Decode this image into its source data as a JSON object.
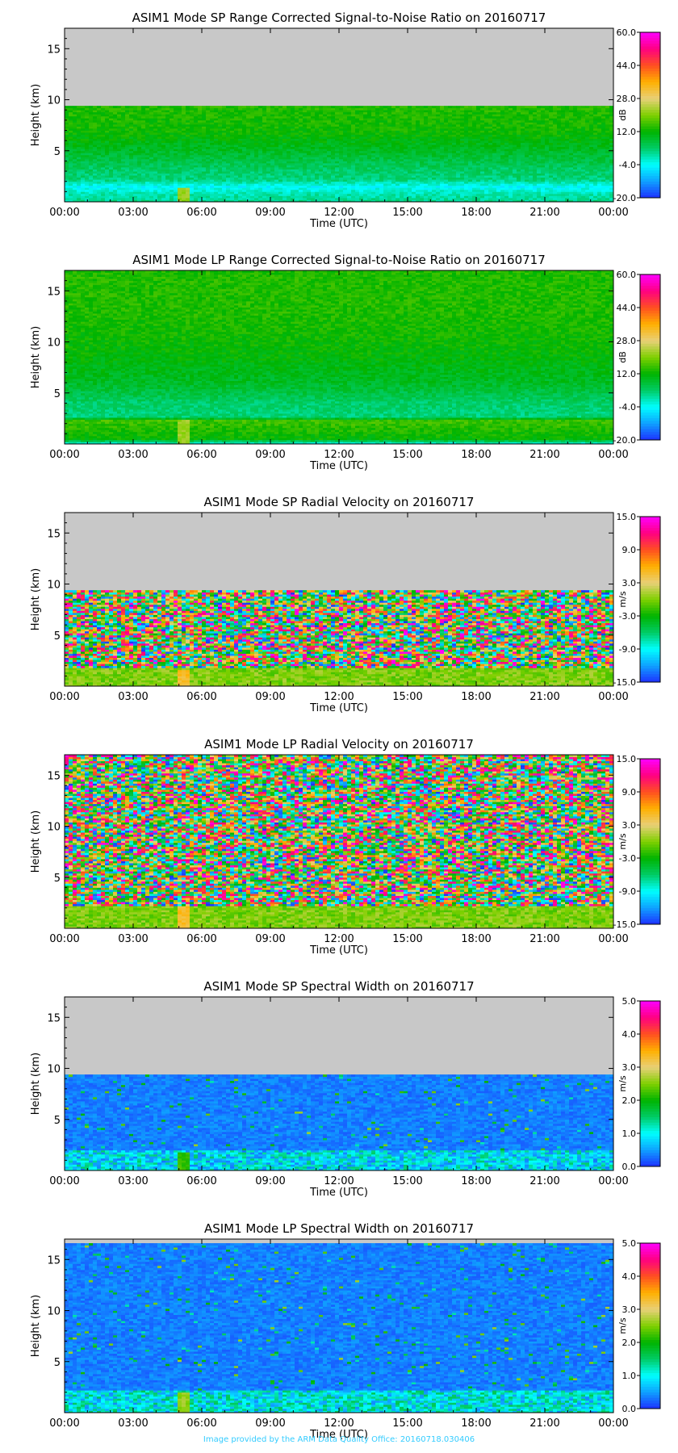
{
  "footer_text": "Image provided by the ARM Data Quality Office: 20160718.030406",
  "colors": {
    "no_data": "#c8c8c8",
    "background": "#ffffff",
    "colorbar": [
      "#1e30ff",
      "#0fa0ff",
      "#00ffff",
      "#00cc66",
      "#00b400",
      "#7fd000",
      "#e8d078",
      "#ffb000",
      "#ff5020",
      "#ff0080",
      "#ff00ff"
    ]
  },
  "chart_data": [
    {
      "type": "heatmap",
      "title": "ASIM1 Mode SP Range Corrected Signal-to-Noise Ratio on 20160717",
      "xlabel": "Time (UTC)",
      "ylabel": "Height (km)",
      "x_ticks": [
        "00:00",
        "03:00",
        "06:00",
        "09:00",
        "12:00",
        "15:00",
        "18:00",
        "21:00",
        "00:00"
      ],
      "xlim_hours": [
        0,
        24
      ],
      "ylim": [
        0,
        17
      ],
      "y_ticks": [
        5,
        10,
        15
      ],
      "data_top_km": 9.3,
      "no_data_above_top": true,
      "colorbar": {
        "unit": "dB",
        "range": [
          -20,
          60
        ],
        "tick_labels": [
          "60.0",
          "44.0",
          "28.0",
          "12.0",
          "-4.0",
          "-20.0"
        ]
      },
      "profile": [
        [
          0,
          2
        ],
        [
          0.8,
          0
        ],
        [
          1.5,
          -4
        ],
        [
          2.2,
          3
        ],
        [
          3.0,
          4
        ],
        [
          5.0,
          9
        ],
        [
          7.0,
          13
        ],
        [
          9.3,
          14
        ]
      ],
      "events": [
        {
          "time_h": 5.2,
          "height_top_km": 1.5,
          "value": 22
        }
      ]
    },
    {
      "type": "heatmap",
      "title": "ASIM1 Mode LP Range Corrected Signal-to-Noise Ratio on 20160717",
      "xlabel": "Time (UTC)",
      "ylabel": "Height (km)",
      "x_ticks": [
        "00:00",
        "03:00",
        "06:00",
        "09:00",
        "12:00",
        "15:00",
        "18:00",
        "21:00",
        "00:00"
      ],
      "xlim_hours": [
        0,
        24
      ],
      "ylim": [
        0,
        17
      ],
      "y_ticks": [
        5,
        10,
        15
      ],
      "data_top_km": 17,
      "no_data_above_top": false,
      "colorbar": {
        "unit": "dB",
        "range": [
          -20,
          60
        ],
        "tick_labels": [
          "60.0",
          "44.0",
          "28.0",
          "12.0",
          "-4.0",
          "-20.0"
        ]
      },
      "profile": [
        [
          0,
          -4
        ],
        [
          0.5,
          12
        ],
        [
          2.4,
          16
        ],
        [
          2.6,
          3
        ],
        [
          4.0,
          4
        ],
        [
          6.0,
          9
        ],
        [
          9.0,
          12
        ],
        [
          13.0,
          14
        ],
        [
          17.0,
          14
        ]
      ],
      "events": [
        {
          "time_h": 5.2,
          "height_top_km": 2.4,
          "value": 22
        }
      ]
    },
    {
      "type": "heatmap",
      "title": "ASIM1 Mode SP Radial Velocity  on 20160717",
      "xlabel": "Time (UTC)",
      "ylabel": "Height (km)",
      "x_ticks": [
        "00:00",
        "03:00",
        "06:00",
        "09:00",
        "12:00",
        "15:00",
        "18:00",
        "21:00",
        "00:00"
      ],
      "xlim_hours": [
        0,
        24
      ],
      "ylim": [
        0,
        17
      ],
      "y_ticks": [
        5,
        10,
        15
      ],
      "data_top_km": 9.3,
      "no_data_above_top": true,
      "colorbar": {
        "unit": "m/s",
        "range": [
          -15,
          15
        ],
        "tick_labels": [
          "15.0",
          "9.0",
          "3.0",
          "-3.0",
          "-9.0",
          "-15.0"
        ]
      },
      "noise_above_km": 1.8,
      "low_level_value": 0,
      "events": [
        {
          "time_h": 5.2,
          "height_top_km": 1.6,
          "value": 5
        }
      ]
    },
    {
      "type": "heatmap",
      "title": "ASIM1 Mode LP Radial Velocity  on 20160717",
      "xlabel": "Time (UTC)",
      "ylabel": "Height (km)",
      "x_ticks": [
        "00:00",
        "03:00",
        "06:00",
        "09:00",
        "12:00",
        "15:00",
        "18:00",
        "21:00",
        "00:00"
      ],
      "xlim_hours": [
        0,
        24
      ],
      "ylim": [
        0,
        17
      ],
      "y_ticks": [
        5,
        10,
        15
      ],
      "data_top_km": 17,
      "no_data_above_top": false,
      "colorbar": {
        "unit": "m/s",
        "range": [
          -15,
          15
        ],
        "tick_labels": [
          "15.0",
          "9.0",
          "3.0",
          "-3.0",
          "-9.0",
          "-15.0"
        ]
      },
      "noise_above_km": 2.2,
      "low_level_value": 0,
      "events": [
        {
          "time_h": 5.2,
          "height_top_km": 2.2,
          "value": 5
        }
      ]
    },
    {
      "type": "heatmap",
      "title": "ASIM1 Mode SP Spectral Width  on 20160717",
      "xlabel": "Time (UTC)",
      "ylabel": "Height (km)",
      "x_ticks": [
        "00:00",
        "03:00",
        "06:00",
        "09:00",
        "12:00",
        "15:00",
        "18:00",
        "21:00",
        "00:00"
      ],
      "xlim_hours": [
        0,
        24
      ],
      "ylim": [
        0,
        17
      ],
      "y_ticks": [
        5,
        10,
        15
      ],
      "data_top_km": 9.3,
      "no_data_above_top": true,
      "colorbar": {
        "unit": "m/s",
        "range": [
          0,
          5
        ],
        "tick_labels": [
          "5.0",
          "4.0",
          "3.0",
          "2.0",
          "1.0",
          "0.0"
        ]
      },
      "background_value": 0.35,
      "low_layer_km": 2.0,
      "low_layer_value": 0.9,
      "events": [
        {
          "time_h": 5.2,
          "height_top_km": 1.8,
          "value": 2.2
        }
      ]
    },
    {
      "type": "heatmap",
      "title": "ASIM1 Mode LP Spectral Width  on 20160717",
      "xlabel": "Time (UTC)",
      "ylabel": "Height (km)",
      "x_ticks": [
        "00:00",
        "03:00",
        "06:00",
        "09:00",
        "12:00",
        "15:00",
        "18:00",
        "21:00",
        "00:00"
      ],
      "xlim_hours": [
        0,
        24
      ],
      "ylim": [
        0,
        17
      ],
      "y_ticks": [
        5,
        10,
        15
      ],
      "data_top_km": 16.6,
      "no_data_above_top": true,
      "colorbar": {
        "unit": "m/s",
        "range": [
          0,
          5
        ],
        "tick_labels": [
          "5.0",
          "4.0",
          "3.0",
          "2.0",
          "1.0",
          "0.0"
        ]
      },
      "background_value": 0.35,
      "low_layer_km": 2.2,
      "low_layer_value": 1.0,
      "events": [
        {
          "time_h": 5.2,
          "height_top_km": 2.0,
          "value": 2.6
        }
      ]
    }
  ]
}
